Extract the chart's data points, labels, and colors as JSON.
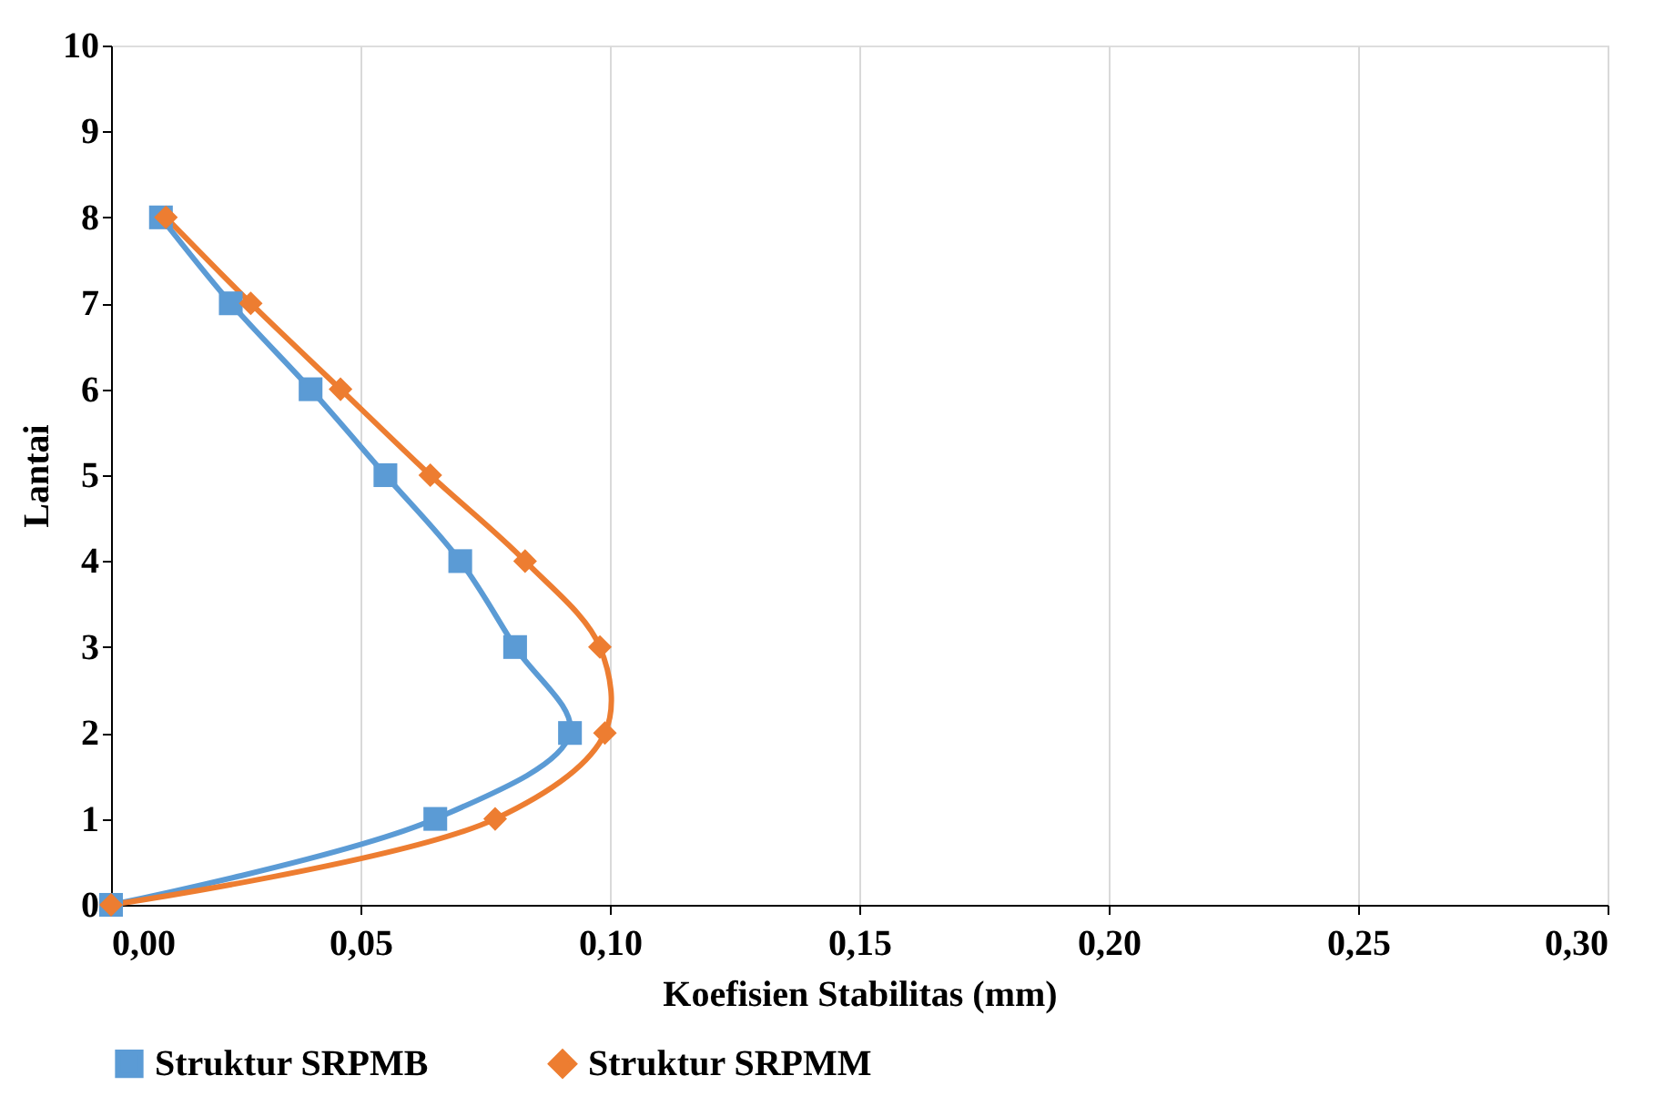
{
  "chart_data": {
    "type": "line",
    "xlabel": "Koefisien Stabilitas (mm)",
    "ylabel": "Lantai",
    "xlim": [
      0,
      0.3
    ],
    "xticks": [
      {
        "value": 0,
        "label": "0,00"
      },
      {
        "value": 0.05,
        "label": "0,05"
      },
      {
        "value": 0.1,
        "label": "0,10"
      },
      {
        "value": 0.15,
        "label": "0,15"
      },
      {
        "value": 0.2,
        "label": "0,20"
      },
      {
        "value": 0.25,
        "label": "0,25"
      },
      {
        "value": 0.3,
        "label": "0,30"
      }
    ],
    "ylim": [
      0,
      10
    ],
    "yticks": [
      0,
      1,
      2,
      3,
      4,
      5,
      6,
      7,
      8,
      9,
      10
    ],
    "grid": "x",
    "legend": "bottom",
    "line_style": "solid",
    "series": [
      {
        "name": "Struktur SRPMB",
        "color": "#5b9bd5",
        "marker": "square",
        "x": [
          0,
          0.065,
          0.092,
          0.081,
          0.07,
          0.055,
          0.04,
          0.024,
          0.01
        ],
        "values": [
          0,
          1,
          2,
          3,
          4,
          5,
          6,
          7,
          8
        ]
      },
      {
        "name": "Struktur SRPMM",
        "color": "#ed7d31",
        "marker": "diamond",
        "x": [
          0,
          0.077,
          0.099,
          0.098,
          0.083,
          0.064,
          0.046,
          0.028,
          0.011
        ],
        "values": [
          0,
          1,
          2,
          3,
          4,
          5,
          6,
          7,
          8
        ]
      }
    ]
  }
}
